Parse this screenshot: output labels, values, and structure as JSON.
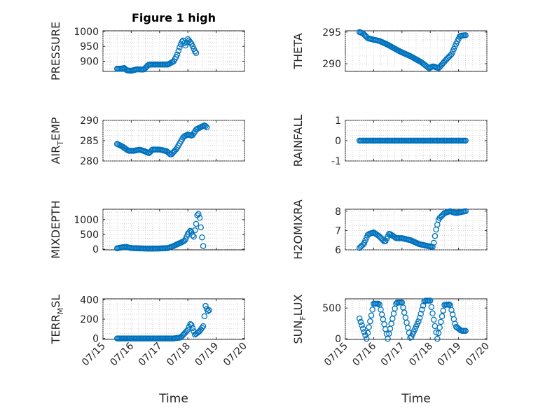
{
  "figure": {
    "title": "Figure 1 high"
  },
  "time_axis": {
    "tick_labels": [
      "07/15",
      "07/16",
      "07/17",
      "07/18",
      "07/19",
      "07/20"
    ],
    "xlabel": "Time"
  },
  "chart_data": [
    {
      "type": "scatter",
      "panel": "PRESSURE",
      "title": "Figure 1 high",
      "ylabel": "PRESSURE",
      "ylabel_sub": "",
      "ylabel_after": "",
      "x_start_day": 15.5,
      "x_end_day": 19.85,
      "xlim": [
        15.5,
        19.85
      ],
      "ylim": [
        866,
        1002
      ],
      "yticks": [
        900,
        950,
        1000
      ],
      "yticklabels": [
        "900",
        "950",
        "1000"
      ],
      "anchors": [
        [
          15.5,
          875
        ],
        [
          15.65,
          875
        ],
        [
          15.75,
          877
        ],
        [
          15.85,
          869
        ],
        [
          16.0,
          868
        ],
        [
          16.2,
          873
        ],
        [
          16.45,
          872
        ],
        [
          16.6,
          888
        ],
        [
          16.75,
          889
        ],
        [
          17.3,
          889
        ],
        [
          17.5,
          900
        ],
        [
          17.62,
          921
        ],
        [
          17.72,
          950
        ],
        [
          17.82,
          972
        ],
        [
          17.92,
          952
        ],
        [
          18.0,
          974
        ],
        [
          18.12,
          960
        ],
        [
          18.25,
          933
        ],
        [
          18.32,
          924
        ]
      ],
      "show_xticklabels": false,
      "show_xlabel": false
    },
    {
      "type": "scatter",
      "panel": "THETA",
      "title": "",
      "ylabel": "THETA",
      "ylabel_sub": "",
      "ylabel_after": "",
      "x_start_day": 15.5,
      "x_end_day": 19.85,
      "xlim": [
        15.5,
        19.85
      ],
      "ylim": [
        288.8,
        295.2
      ],
      "yticks": [
        290,
        295
      ],
      "yticklabels": [
        "290",
        "295"
      ],
      "anchors": [
        [
          15.5,
          295
        ],
        [
          15.62,
          294.8
        ],
        [
          15.8,
          294.0
        ],
        [
          16.2,
          293.6
        ],
        [
          16.5,
          293.0
        ],
        [
          16.9,
          292.0
        ],
        [
          17.3,
          291.2
        ],
        [
          17.7,
          290.2
        ],
        [
          17.95,
          289.3
        ],
        [
          18.1,
          289.6
        ],
        [
          18.3,
          289.3
        ],
        [
          18.55,
          290.6
        ],
        [
          18.75,
          291.5
        ],
        [
          18.9,
          293.0
        ],
        [
          19.05,
          294.4
        ],
        [
          19.25,
          294.5
        ]
      ],
      "show_xticklabels": false,
      "show_xlabel": false
    },
    {
      "type": "scatter",
      "panel": "AIR_TEMP",
      "title": "",
      "ylabel": "AIR",
      "ylabel_sub": "T",
      "ylabel_after": "EMP",
      "x_start_day": 15.5,
      "x_end_day": 19.85,
      "xlim": [
        15.5,
        19.85
      ],
      "ylim": [
        280,
        290
      ],
      "yticks": [
        280,
        285,
        290
      ],
      "yticklabels": [
        "280",
        "285",
        "290"
      ],
      "anchors": [
        [
          15.5,
          284.2
        ],
        [
          15.7,
          283.5
        ],
        [
          15.9,
          282.5
        ],
        [
          16.1,
          282.5
        ],
        [
          16.3,
          282.8
        ],
        [
          16.5,
          282.3
        ],
        [
          16.62,
          281.9
        ],
        [
          16.75,
          282.8
        ],
        [
          17.0,
          282.8
        ],
        [
          17.25,
          282.4
        ],
        [
          17.4,
          281.5
        ],
        [
          17.6,
          283.0
        ],
        [
          17.85,
          286.0
        ],
        [
          18.0,
          286.5
        ],
        [
          18.15,
          286.2
        ],
        [
          18.3,
          287.8
        ],
        [
          18.45,
          288.3
        ],
        [
          18.6,
          288.8
        ],
        [
          18.7,
          288.0
        ]
      ],
      "show_xticklabels": false,
      "show_xlabel": false
    },
    {
      "type": "scatter",
      "panel": "RAINFALL",
      "title": "",
      "ylabel": "RAINFALL",
      "ylabel_sub": "",
      "ylabel_after": "",
      "x_start_day": 15.5,
      "x_end_day": 19.85,
      "xlim": [
        15.5,
        19.85
      ],
      "ylim": [
        -1,
        1
      ],
      "yticks": [
        -1,
        0,
        1
      ],
      "yticklabels": [
        "-1",
        "0",
        "1"
      ],
      "anchors": [
        [
          15.5,
          0
        ],
        [
          19.25,
          0
        ]
      ],
      "show_xticklabels": false,
      "show_xlabel": false
    },
    {
      "type": "scatter",
      "panel": "MIXDEPTH",
      "title": "",
      "ylabel": "MIXDEPTH",
      "ylabel_sub": "",
      "ylabel_after": "",
      "x_start_day": 15.5,
      "x_end_day": 19.85,
      "xlim": [
        15.5,
        19.85
      ],
      "ylim": [
        -20,
        1350
      ],
      "yticks": [
        0,
        500,
        1000
      ],
      "yticklabels": [
        "0",
        "500",
        "1000"
      ],
      "anchors": [
        [
          15.5,
          30
        ],
        [
          15.65,
          60
        ],
        [
          15.8,
          80
        ],
        [
          16.0,
          40
        ],
        [
          16.3,
          30
        ],
        [
          16.6,
          20
        ],
        [
          17.0,
          25
        ],
        [
          17.3,
          40
        ],
        [
          17.5,
          110
        ],
        [
          17.65,
          180
        ],
        [
          17.75,
          220
        ],
        [
          17.9,
          300
        ],
        [
          18.0,
          520
        ],
        [
          18.1,
          640
        ],
        [
          18.2,
          380
        ],
        [
          18.3,
          900
        ],
        [
          18.35,
          1270
        ],
        [
          18.42,
          1050
        ],
        [
          18.5,
          400
        ],
        [
          18.55,
          50
        ]
      ],
      "show_xticklabels": false,
      "show_xlabel": false
    },
    {
      "type": "scatter",
      "panel": "H2OMIXRA",
      "title": "",
      "ylabel": "H2OMIXRA",
      "ylabel_sub": "",
      "ylabel_after": "",
      "x_start_day": 15.5,
      "x_end_day": 19.85,
      "xlim": [
        15.5,
        19.85
      ],
      "ylim": [
        6,
        8.1
      ],
      "yticks": [
        6,
        7,
        8
      ],
      "yticklabels": [
        "6",
        "7",
        "8"
      ],
      "anchors": [
        [
          15.5,
          6.1
        ],
        [
          15.65,
          6.3
        ],
        [
          15.8,
          6.8
        ],
        [
          16.0,
          6.9
        ],
        [
          16.2,
          6.7
        ],
        [
          16.4,
          6.4
        ],
        [
          16.55,
          6.85
        ],
        [
          16.8,
          6.6
        ],
        [
          17.0,
          6.6
        ],
        [
          17.3,
          6.5
        ],
        [
          17.6,
          6.3
        ],
        [
          17.9,
          6.2
        ],
        [
          18.1,
          6.15
        ],
        [
          18.2,
          7.0
        ],
        [
          18.3,
          7.6
        ],
        [
          18.5,
          7.9
        ],
        [
          18.7,
          8.0
        ],
        [
          18.9,
          7.9
        ],
        [
          19.25,
          8.0
        ]
      ],
      "show_xticklabels": false,
      "show_xlabel": false
    },
    {
      "type": "scatter",
      "panel": "TERR_MSL",
      "title": "",
      "ylabel": "TERR",
      "ylabel_sub": "M",
      "ylabel_after": "SL",
      "x_start_day": 15.5,
      "x_end_day": 19.85,
      "xlim": [
        15.5,
        19.85
      ],
      "ylim": [
        -10,
        410
      ],
      "yticks": [
        0,
        200,
        400
      ],
      "yticklabels": [
        "0",
        "200",
        "400"
      ],
      "anchors": [
        [
          15.5,
          0
        ],
        [
          17.5,
          0
        ],
        [
          17.75,
          10
        ],
        [
          18.0,
          90
        ],
        [
          18.1,
          160
        ],
        [
          18.25,
          40
        ],
        [
          18.4,
          70
        ],
        [
          18.55,
          130
        ],
        [
          18.62,
          340
        ],
        [
          18.7,
          280
        ],
        [
          18.78,
          300
        ]
      ],
      "show_xticklabels": true,
      "show_xlabel": true
    },
    {
      "type": "scatter",
      "panel": "SUN_FLUX",
      "title": "",
      "ylabel": "SUN",
      "ylabel_sub": "F",
      "ylabel_after": "LUX",
      "x_start_day": 15.5,
      "x_end_day": 19.85,
      "xlim": [
        15.5,
        19.85
      ],
      "ylim": [
        -10,
        650
      ],
      "yticks": [
        0,
        500
      ],
      "yticklabels": [
        "0",
        "500"
      ],
      "anchors": [
        [
          15.5,
          330
        ],
        [
          15.75,
          0
        ],
        [
          16.0,
          570
        ],
        [
          16.2,
          570
        ],
        [
          16.5,
          0
        ],
        [
          16.8,
          590
        ],
        [
          17.0,
          590
        ],
        [
          17.3,
          0
        ],
        [
          17.6,
          300
        ],
        [
          17.8,
          620
        ],
        [
          18.0,
          620
        ],
        [
          18.25,
          0
        ],
        [
          18.5,
          550
        ],
        [
          18.7,
          560
        ],
        [
          18.9,
          200
        ],
        [
          19.1,
          130
        ],
        [
          19.25,
          130
        ]
      ],
      "show_xticklabels": true,
      "show_xlabel": true
    }
  ]
}
